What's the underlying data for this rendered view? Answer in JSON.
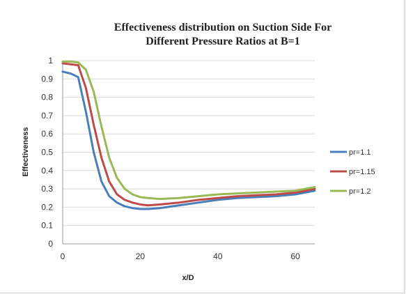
{
  "chart_data": {
    "type": "line",
    "title_lines": [
      "Effectiveness distribution on Suction Side For",
      "Different Pressure Ratios at B=1"
    ],
    "xlabel": "x/D",
    "ylabel": "Effectiveness",
    "xlim": [
      0,
      65
    ],
    "ylim": [
      0,
      1
    ],
    "x_ticks": [
      0,
      20,
      40,
      60
    ],
    "y_ticks": [
      0,
      0.1,
      0.2,
      0.3,
      0.4,
      0.5,
      0.6,
      0.7,
      0.8,
      0.9,
      1
    ],
    "grid": "horizontal",
    "legend_position": "right",
    "series": [
      {
        "name": "pr=1.1",
        "color": "#4a7ebb",
        "x": [
          0,
          2,
          4,
          6,
          8,
          10,
          12,
          14,
          16,
          18,
          20,
          22,
          25,
          30,
          35,
          40,
          45,
          50,
          55,
          60,
          65
        ],
        "y": [
          0.94,
          0.93,
          0.91,
          0.72,
          0.5,
          0.34,
          0.26,
          0.225,
          0.205,
          0.195,
          0.19,
          0.19,
          0.195,
          0.21,
          0.225,
          0.24,
          0.25,
          0.255,
          0.26,
          0.27,
          0.29
        ]
      },
      {
        "name": "pr=1.15",
        "color": "#be4b48",
        "x": [
          0,
          2,
          4,
          6,
          8,
          10,
          12,
          14,
          16,
          18,
          20,
          22,
          25,
          30,
          35,
          40,
          45,
          50,
          55,
          60,
          65
        ],
        "y": [
          0.985,
          0.98,
          0.975,
          0.85,
          0.65,
          0.47,
          0.34,
          0.27,
          0.24,
          0.225,
          0.215,
          0.21,
          0.215,
          0.225,
          0.24,
          0.25,
          0.26,
          0.265,
          0.27,
          0.28,
          0.3
        ]
      },
      {
        "name": "pr=1.2",
        "color": "#98b954",
        "x": [
          0,
          2,
          4,
          6,
          8,
          10,
          12,
          14,
          16,
          18,
          20,
          22,
          25,
          30,
          35,
          40,
          45,
          50,
          55,
          60,
          65
        ],
        "y": [
          0.995,
          0.995,
          0.99,
          0.95,
          0.83,
          0.64,
          0.47,
          0.36,
          0.3,
          0.27,
          0.255,
          0.25,
          0.245,
          0.25,
          0.26,
          0.27,
          0.275,
          0.28,
          0.285,
          0.29,
          0.31
        ]
      }
    ]
  }
}
